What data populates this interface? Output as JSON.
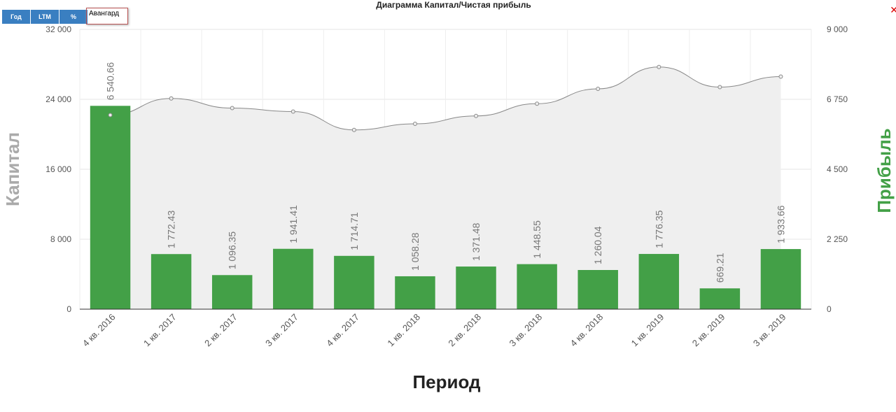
{
  "toolbar": {
    "buttons": [
      "Год",
      "LTM",
      "%"
    ],
    "company": "Авангард",
    "close": "✕"
  },
  "chart_data": {
    "type": "bar+area",
    "title": "Диаграмма Капитал/Чистая прибыль",
    "xlabel": "Период",
    "ylabel_left": "Капитал",
    "ylabel_right": "Прибыль",
    "ylim_left": [
      0,
      32000
    ],
    "ylim_right": [
      0,
      9000
    ],
    "yticks_left": [
      "0",
      "8 000",
      "16 000",
      "24 000",
      "32 000"
    ],
    "yticks_right": [
      "0",
      "2 250",
      "4 500",
      "6 750",
      "9 000"
    ],
    "grid": true,
    "categories": [
      "4 кв. 2016",
      "1 кв. 2017",
      "2 кв. 2017",
      "3 кв. 2017",
      "4 кв. 2017",
      "1 кв. 2018",
      "2 кв. 2018",
      "3 кв. 2018",
      "4 кв. 2018",
      "1 кв. 2019",
      "2 кв. 2019",
      "3 кв. 2019"
    ],
    "series": [
      {
        "axis": "right",
        "type": "bar",
        "color": "#43a047",
        "values": [
          6540.66,
          1772.43,
          1096.35,
          1941.41,
          1714.71,
          1058.28,
          1371.48,
          1448.55,
          1260.04,
          1776.35,
          669.21,
          1933.66
        ],
        "labels": [
          "6 540.66",
          "1 772.43",
          "1 096.35",
          "1 941.41",
          "1 714.71",
          "1 058.28",
          "1 371.48",
          "1 448.55",
          "1 260.04",
          "1 776.35",
          "669.21",
          "1 933.66"
        ]
      },
      {
        "axis": "left",
        "type": "area",
        "color": "#888888",
        "values": [
          22200,
          24100,
          23000,
          22600,
          20500,
          21200,
          22100,
          23500,
          25200,
          27700,
          25400,
          26600
        ]
      }
    ]
  }
}
